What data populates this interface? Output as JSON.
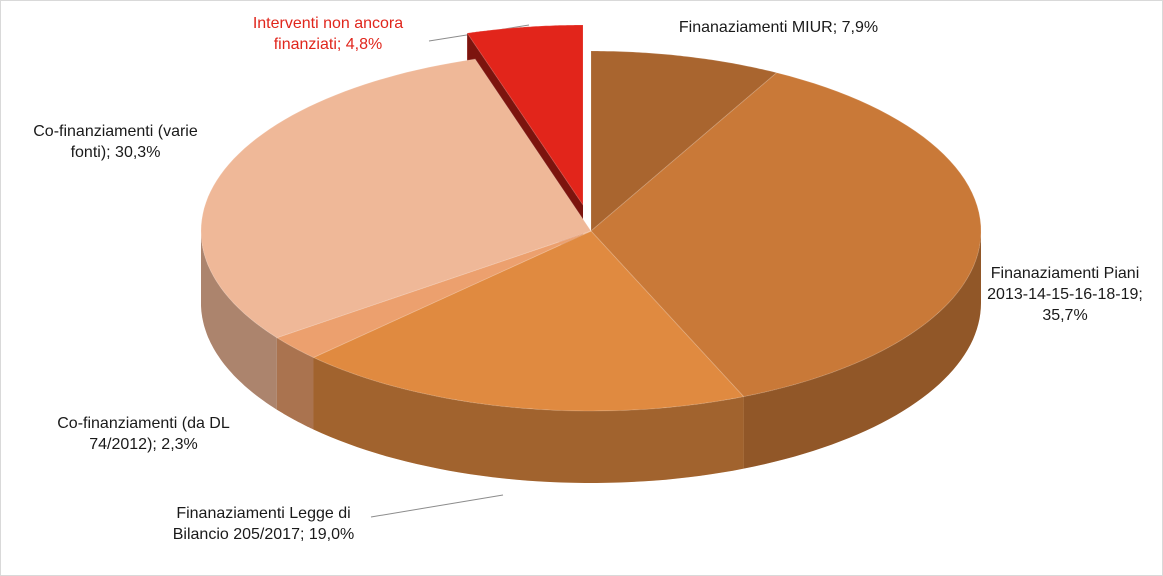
{
  "chart_data": {
    "type": "pie3d",
    "categories": [
      "Finanaziamenti MIUR;",
      "Finanaziamenti Piani 2013-14-15-16-18-19;",
      "Finanaziamenti Legge di Bilancio 205/2017;",
      "Co-finanziamenti (da DL 74/2012);",
      "Co-finanziamenti (varie fonti);",
      "Interventi non ancora finanziati;"
    ],
    "values": [
      7.9,
      35.7,
      19.0,
      2.3,
      30.3,
      4.8
    ],
    "value_labels": [
      "7,9%",
      "35,7%",
      "19,0%",
      "2,3%",
      "30,3%",
      "4,8%"
    ],
    "colors": [
      "#a9652f",
      "#c97938",
      "#e08a40",
      "#eca06e",
      "#efb898",
      "#e2251b"
    ]
  }
}
